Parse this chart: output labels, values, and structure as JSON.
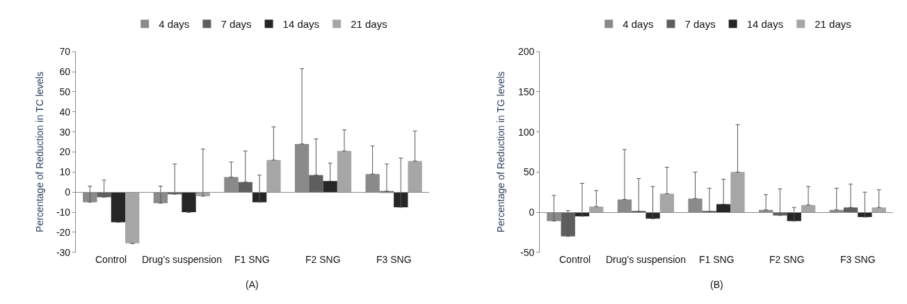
{
  "chart_data": [
    {
      "type": "bar",
      "title": "(A)",
      "ylabel": "Percentage of Reduction in TC levels",
      "categories": [
        "Control",
        "Drug’s suspension",
        "F1 SNG",
        "F2 SNG",
        "F3 SNG"
      ],
      "series": [
        {
          "name": "4 days",
          "color": "#8a8a8a",
          "values": [
            -5,
            -5.5,
            7.5,
            24,
            9
          ],
          "errors": [
            [
              -5,
              3
            ],
            [
              -5.5,
              3
            ],
            [
              7.5,
              15
            ],
            [
              24,
              61.5
            ],
            [
              9,
              23
            ]
          ]
        },
        {
          "name": "7 days",
          "color": "#5e5e5e",
          "values": [
            -2.5,
            -1,
            5,
            8.5,
            0.5
          ],
          "errors": [
            [
              -2.5,
              6
            ],
            [
              -1,
              14
            ],
            [
              5,
              20.5
            ],
            [
              8.5,
              26.5
            ],
            [
              0.5,
              14
            ]
          ]
        },
        {
          "name": "14 days",
          "color": "#262626",
          "values": [
            -15,
            -10,
            -5,
            5.5,
            -7.5
          ],
          "errors": [
            null,
            null,
            [
              -5,
              8.5
            ],
            [
              5.5,
              14.5
            ],
            [
              -7.5,
              17
            ]
          ]
        },
        {
          "name": "21 days",
          "color": "#a6a6a6",
          "values": [
            -25.5,
            -2,
            16,
            20.5,
            15.5
          ],
          "errors": [
            null,
            [
              -2,
              21.5
            ],
            [
              16,
              32.5
            ],
            [
              20.5,
              31
            ],
            [
              15.5,
              30.5
            ]
          ]
        }
      ],
      "ylim": [
        -30,
        70
      ],
      "yticks": [
        -30,
        -20,
        -10,
        0,
        10,
        20,
        30,
        40,
        50,
        60,
        70
      ],
      "legend": "top"
    },
    {
      "type": "bar",
      "title": "(B)",
      "ylabel": "Percentage of Reduction in TG levels",
      "categories": [
        "Control",
        "Drug’s suspension",
        "F1 SNG",
        "F2 SNG",
        "F3 SNG"
      ],
      "series": [
        {
          "name": "4 days",
          "color": "#8a8a8a",
          "values": [
            -11,
            16,
            17,
            3,
            3
          ],
          "errors": [
            [
              -11,
              21
            ],
            [
              16,
              78
            ],
            [
              17,
              50
            ],
            [
              3,
              22
            ],
            [
              3,
              30
            ]
          ]
        },
        {
          "name": "7 days",
          "color": "#5e5e5e",
          "values": [
            -30,
            1,
            1,
            -4,
            6
          ],
          "errors": [
            [
              -30,
              2
            ],
            [
              1,
              42
            ],
            [
              1,
              30
            ],
            [
              -4,
              29
            ],
            [
              6,
              35
            ]
          ]
        },
        {
          "name": "14 days",
          "color": "#262626",
          "values": [
            -5,
            -8,
            10,
            -11,
            -6
          ],
          "errors": [
            [
              -5,
              36
            ],
            [
              -8,
              32
            ],
            [
              10,
              41
            ],
            [
              -11,
              6
            ],
            [
              -6,
              25
            ]
          ]
        },
        {
          "name": "21 days",
          "color": "#a6a6a6",
          "values": [
            7,
            23,
            50,
            9,
            6
          ],
          "errors": [
            [
              7,
              27
            ],
            [
              23,
              56
            ],
            [
              50,
              109
            ],
            [
              9,
              32
            ],
            [
              6,
              28
            ]
          ]
        }
      ],
      "ylim": [
        -50,
        200
      ],
      "yticks": [
        -50,
        0,
        50,
        100,
        150,
        200
      ],
      "legend": "top"
    }
  ]
}
